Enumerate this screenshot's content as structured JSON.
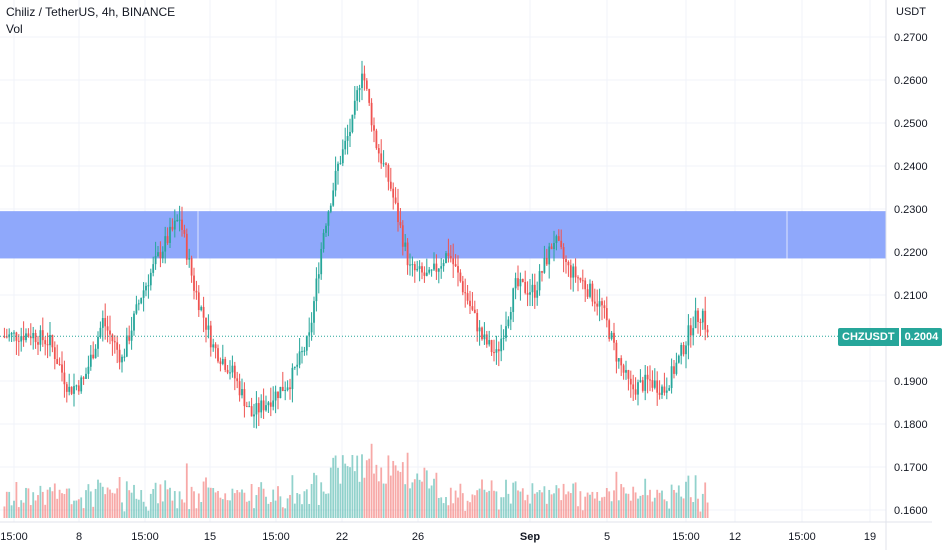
{
  "header": {
    "title": "Chiliz / TetherUS, 4h, BINANCE",
    "volume_label": "Vol"
  },
  "price_axis": {
    "currency": "USDT",
    "ticks": [
      "0.2700",
      "0.2600",
      "0.2500",
      "0.2400",
      "0.2300",
      "0.2200",
      "0.2100",
      "0.1900",
      "0.1800",
      "0.1700",
      "0.1600"
    ]
  },
  "time_axis": {
    "ticks": [
      "15:00",
      "8",
      "15:00",
      "15",
      "15:00",
      "22",
      "26",
      "Sep",
      "5",
      "15:00",
      "12",
      "15:00",
      "19"
    ]
  },
  "last_price": {
    "symbol": "CHZUSDT",
    "value": "0.2004"
  },
  "colors": {
    "up": "#26a69a",
    "down": "#ef5350",
    "zone": "#8fa8fb",
    "tag": "#26a69a"
  },
  "chart_data": {
    "type": "candlestick",
    "interval": "4h",
    "ylim": [
      0.1575,
      0.2745
    ],
    "zone": [
      0.2185,
      0.2295
    ],
    "grid": true,
    "legend": "none",
    "close_path": [
      [
        0,
        0.2004
      ],
      [
        2,
        0.2004
      ],
      [
        12,
        0.201
      ],
      [
        20,
        0.199
      ],
      [
        28,
        0.188
      ],
      [
        34,
        0.19
      ],
      [
        42,
        0.204
      ],
      [
        50,
        0.195
      ],
      [
        58,
        0.21
      ],
      [
        66,
        0.22
      ],
      [
        74,
        0.228
      ],
      [
        80,
        0.212
      ],
      [
        88,
        0.198
      ],
      [
        96,
        0.192
      ],
      [
        104,
        0.182
      ],
      [
        112,
        0.186
      ],
      [
        120,
        0.19
      ],
      [
        128,
        0.2
      ],
      [
        134,
        0.225
      ],
      [
        140,
        0.24
      ],
      [
        146,
        0.25
      ],
      [
        150,
        0.263
      ],
      [
        156,
        0.245
      ],
      [
        162,
        0.235
      ],
      [
        170,
        0.216
      ],
      [
        178,
        0.214
      ],
      [
        186,
        0.22
      ],
      [
        194,
        0.209
      ],
      [
        200,
        0.2
      ],
      [
        206,
        0.196
      ],
      [
        214,
        0.212
      ],
      [
        222,
        0.211
      ],
      [
        230,
        0.223
      ],
      [
        236,
        0.216
      ],
      [
        242,
        0.213
      ],
      [
        250,
        0.207
      ],
      [
        256,
        0.196
      ],
      [
        262,
        0.188
      ],
      [
        270,
        0.19
      ],
      [
        276,
        0.188
      ],
      [
        282,
        0.195
      ],
      [
        288,
        0.204
      ],
      [
        292,
        0.206
      ],
      [
        294,
        0.2004
      ]
    ]
  }
}
